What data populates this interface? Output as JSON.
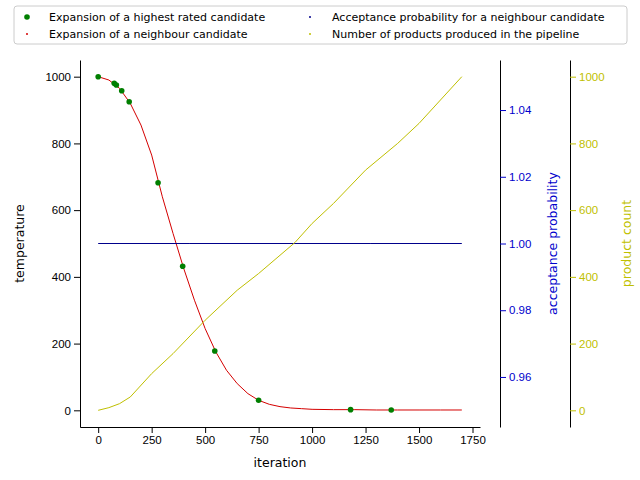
{
  "chart_data": {
    "type": "line",
    "x_label": "iteration",
    "y_label": "temperature",
    "y2_label": "acceptance probability",
    "y3_label": "product count",
    "xlim": [
      -85,
      1785
    ],
    "xticks": [
      0,
      250,
      500,
      750,
      1000,
      1250,
      1500,
      1750
    ],
    "ylim": [
      -50,
      1050
    ],
    "yticks": [
      0,
      200,
      400,
      600,
      800,
      1000
    ],
    "y2lim": [
      0.945,
      1.055
    ],
    "y2ticks": [
      {
        "value": 0.96,
        "label": "0.96"
      },
      {
        "value": 0.98,
        "label": "0.98"
      },
      {
        "value": 1.0,
        "label": "1.00"
      },
      {
        "value": 1.02,
        "label": "1.02"
      },
      {
        "value": 1.04,
        "label": "1.04"
      }
    ],
    "y3lim": [
      -50,
      1050
    ],
    "y3ticks": [
      0,
      200,
      400,
      600,
      800,
      1000
    ],
    "legend": "top",
    "series": [
      {
        "name": "Expansion of a highest rated candidate",
        "type": "scatter",
        "marker": "circle",
        "color": "#007f00",
        "axis": "y",
        "x": [
          0,
          75,
          85,
          110,
          145,
          280,
          395,
          545,
          750,
          1180,
          1370
        ],
        "values": [
          1000,
          980,
          975,
          958,
          925,
          682,
          432,
          178,
          30,
          2,
          1
        ]
      },
      {
        "name": "Expansion of a neighbour candidate",
        "type": "line",
        "color": "#d40000",
        "axis": "y",
        "x": [
          0,
          50,
          100,
          150,
          200,
          250,
          300,
          350,
          400,
          450,
          500,
          550,
          600,
          650,
          700,
          750,
          800,
          850,
          900,
          950,
          1000,
          1100,
          1200,
          1300,
          1400,
          1500,
          1600,
          1700
        ],
        "values": [
          1000,
          990,
          965,
          920,
          855,
          765,
          640,
          530,
          425,
          330,
          245,
          175,
          120,
          80,
          50,
          30,
          18,
          11,
          7,
          5,
          3,
          2,
          2,
          1,
          1,
          1,
          1,
          1
        ]
      },
      {
        "name": "Acceptance probability for a neighbour candidate",
        "type": "line",
        "color": "#00008b",
        "axis": "y2",
        "x": [
          0,
          425,
          850,
          1275,
          1700
        ],
        "values": [
          1,
          1,
          1,
          1,
          1
        ]
      },
      {
        "name": "Number of products produced in the pipeline",
        "type": "line",
        "color": "#bfbf00",
        "axis": "y3",
        "x": [
          0,
          50,
          100,
          150,
          250,
          350,
          500,
          650,
          750,
          920,
          1000,
          1100,
          1250,
          1400,
          1500,
          1600,
          1700
        ],
        "values": [
          0,
          8,
          20,
          40,
          110,
          170,
          270,
          360,
          410,
          503,
          560,
          620,
          720,
          800,
          860,
          930,
          1000
        ]
      }
    ]
  }
}
